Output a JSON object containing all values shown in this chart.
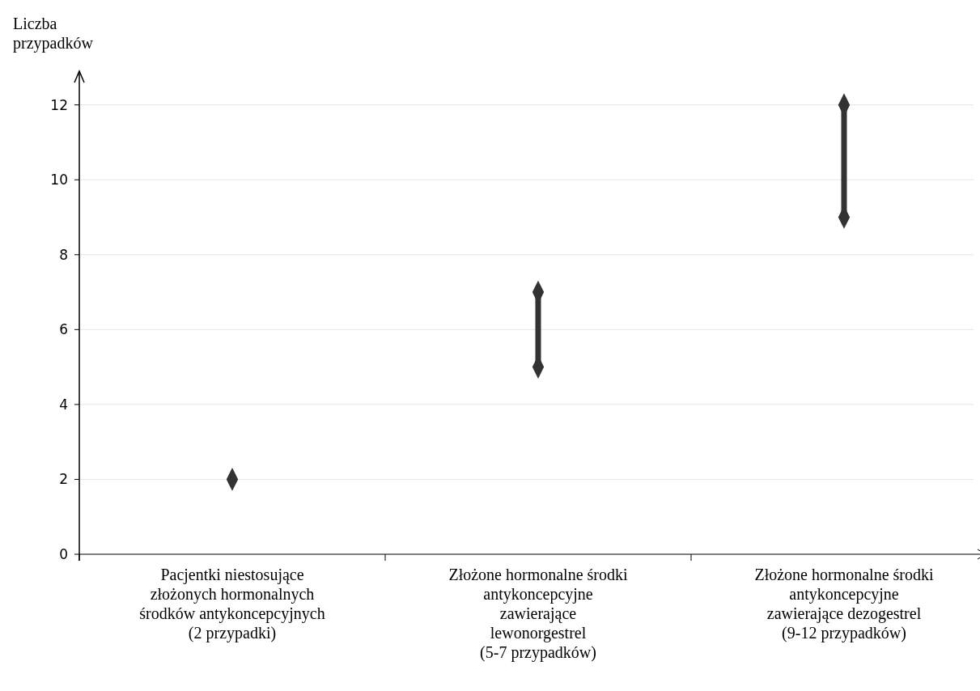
{
  "chart_data": {
    "type": "scatter",
    "ylabel": "Liczba przypadków",
    "categories": [
      "Pacjentki niestosujące złożonych hormonalnych środków antykoncepcyjnych (2 przypadki)",
      "Złożone hormonalne środki antykoncepcyjne zawierające lewonorgestrel (5-7 przypadków)",
      "Złożone hormonalne środki antykoncepcyjne zawierające dezogestrel (9-12 przypadków)"
    ],
    "series": [
      {
        "type": "line",
        "color": "#333333",
        "x": [
          "Złożone hormonalne środki antykoncepcyjne zawierające lewonorgestrel (5-7 przypadków)",
          "Złożone hormonalne środki antykoncepcyjne zawierające lewonorgestrel (5-7 przypadków)"
        ],
        "values": [
          5,
          7
        ]
      },
      {
        "type": "line",
        "color": "#333333",
        "x": [
          "Złożone hormonalne środki antykoncepcyjne zawierające dezogestrel (9-12 przypadków)",
          "Złożone hormonalne środki antykoncepcyjne zawierające dezogestrel (9-12 przypadków)"
        ],
        "values": [
          9,
          12
        ]
      },
      {
        "color": "#333333",
        "marker": "diamond",
        "values": [
          2,
          5,
          9
        ]
      },
      {
        "color": "#333333",
        "marker": "diamond",
        "values": [
          null,
          7,
          12
        ]
      }
    ],
    "ylim": [
      0,
      12.9
    ],
    "yticks": [
      0,
      2,
      4,
      6,
      8,
      10,
      12
    ],
    "grid": "y"
  }
}
